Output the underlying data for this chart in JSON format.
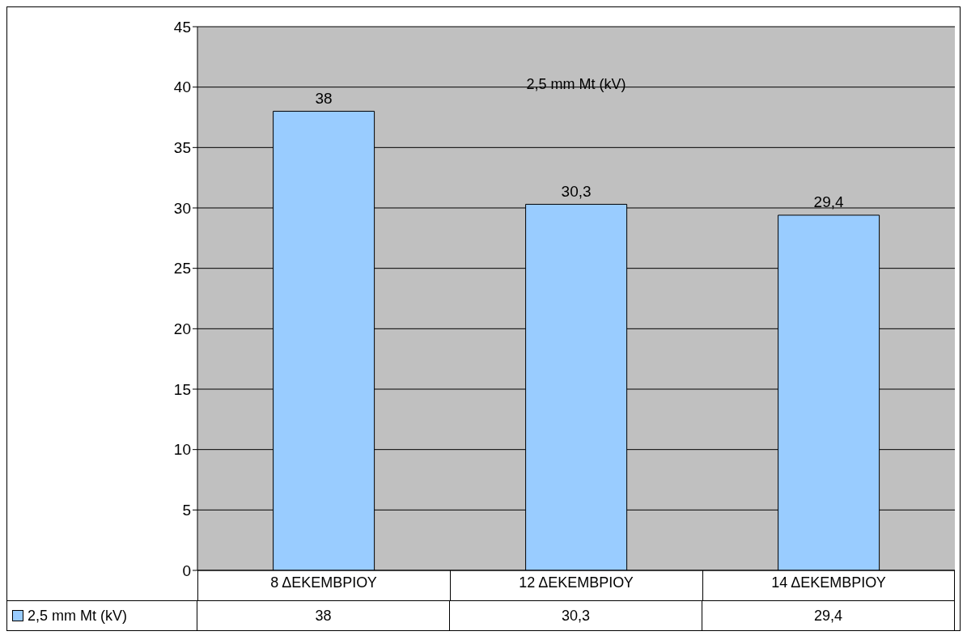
{
  "chart_data": {
    "type": "bar",
    "title": "2,5 mm Mt (kV)",
    "categories": [
      "8 ΔΕΚΕΜΒΡΙΟΥ",
      "12 ΔΕΚΕΜΒΡΙΟΥ",
      "14 ΔΕΚΕΜΒΡΙΟΥ"
    ],
    "series": [
      {
        "name": "2,5 mm Mt (kV)",
        "color": "#99ccff",
        "values": [
          38,
          30.3,
          29.4
        ],
        "value_labels": [
          "38",
          "30,3",
          "29,4"
        ]
      }
    ],
    "ylim": [
      0,
      45
    ],
    "yticks": [
      0,
      5,
      10,
      15,
      20,
      25,
      30,
      35,
      40,
      45
    ],
    "grid": "y",
    "legend": "bottom"
  }
}
